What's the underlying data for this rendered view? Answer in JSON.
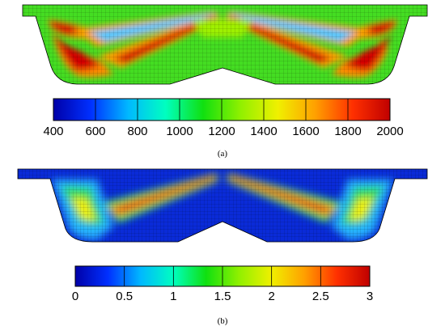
{
  "panels": [
    {
      "caption": "(a)",
      "colorbar": {
        "ticks": [
          "400",
          "600",
          "800",
          "1000",
          "1200",
          "1400",
          "1600",
          "1800",
          "2000"
        ]
      }
    },
    {
      "caption": "(b)",
      "colorbar": {
        "ticks": [
          "0",
          "0.5",
          "1",
          "1.5",
          "2",
          "2.5",
          "3"
        ]
      }
    }
  ],
  "colors": {
    "map": [
      "#0000a8",
      "#0030ff",
      "#00b8ff",
      "#00ffc0",
      "#10e010",
      "#90f000",
      "#f0f000",
      "#ffa000",
      "#ff3000",
      "#c00000"
    ],
    "background_a": "#44dd22",
    "background_b": "#0a2bd8"
  }
}
